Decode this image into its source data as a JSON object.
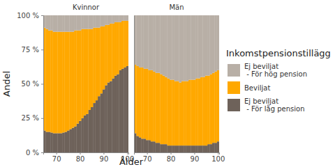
{
  "chart_data": {
    "type": "bar",
    "stacked": true,
    "x_label": "Ålder",
    "y_label": "Andel",
    "legend_title": "Inkomstpensionstillägg",
    "categories": [
      65,
      66,
      67,
      68,
      69,
      70,
      71,
      72,
      73,
      74,
      75,
      76,
      77,
      78,
      79,
      80,
      81,
      82,
      83,
      84,
      85,
      86,
      87,
      88,
      89,
      90,
      91,
      92,
      93,
      94,
      95,
      96,
      97,
      98,
      99,
      100
    ],
    "xlim": [
      64.5,
      100.5
    ],
    "xticks": [
      70,
      80,
      90,
      100
    ],
    "ylim": [
      0,
      100
    ],
    "yticks": [
      {
        "value": 0,
        "label": "0 %"
      },
      {
        "value": 25,
        "label": "25 %"
      },
      {
        "value": 50,
        "label": "50 %"
      },
      {
        "value": 75,
        "label": "75 %"
      },
      {
        "value": 100,
        "label": "100 %"
      }
    ],
    "series": [
      {
        "name": "Ej beviljat\n - För låg pension",
        "color": "#6e625a"
      },
      {
        "name": "Beviljat",
        "color": "#ffa800"
      },
      {
        "name": "Ej beviljat\n - För hög pension",
        "color": "#b8afa6"
      }
    ],
    "facets": [
      {
        "title": "Kvinnor",
        "series": [
          {
            "values": [
              16,
              15,
              15,
              14.5,
              14,
              14,
              14,
              14,
              14.5,
              15,
              16,
              17,
              18,
              19,
              21,
              23,
              25,
              27,
              28,
              31,
              33,
              36,
              38,
              41,
              43,
              46,
              49,
              51,
              52,
              54,
              56,
              57,
              60,
              61,
              62,
              63
            ]
          },
          {
            "values": [
              75,
              75,
              74,
              74.5,
              74,
              74,
              74,
              74,
              73.5,
              73,
              72,
              71,
              70,
              70,
              68,
              66,
              65,
              63,
              62,
              59,
              57,
              55,
              53,
              50,
              49,
              46,
              44,
              42,
              42,
              40,
              39,
              38,
              35,
              35,
              34,
              33
            ]
          },
          {
            "values": [
              9,
              10,
              11,
              11,
              12,
              12,
              12,
              12,
              12,
              12,
              12,
              12,
              12,
              11,
              11,
              11,
              10,
              10,
              10,
              10,
              10,
              9,
              9,
              9,
              8,
              8,
              7,
              7,
              6,
              6,
              5,
              5,
              5,
              4,
              4,
              4
            ]
          }
        ]
      },
      {
        "title": "Män",
        "series": [
          {
            "values": [
              14,
              12,
              11,
              10,
              10,
              9,
              9,
              8,
              8,
              7,
              7,
              6,
              6,
              6,
              5,
              5,
              5,
              5,
              5,
              5,
              5,
              5,
              5,
              5,
              5,
              5,
              5,
              5,
              5,
              5,
              5,
              6,
              6,
              7,
              7,
              8
            ]
          },
          {
            "values": [
              50,
              51,
              51,
              52,
              51,
              52,
              51,
              52,
              51,
              51,
              51,
              51,
              50,
              49,
              49,
              48,
              48,
              47,
              47,
              46,
              47,
              47,
              47,
              48,
              48,
              48,
              49,
              49,
              50,
              50,
              51,
              50,
              51,
              51,
              52,
              52
            ]
          },
          {
            "values": [
              36,
              37,
              38,
              38,
              39,
              39,
              40,
              40,
              41,
              42,
              42,
              43,
              44,
              45,
              46,
              47,
              47,
              48,
              48,
              49,
              48,
              48,
              48,
              47,
              47,
              47,
              46,
              46,
              45,
              45,
              44,
              44,
              43,
              42,
              41,
              40
            ]
          }
        ]
      }
    ]
  }
}
